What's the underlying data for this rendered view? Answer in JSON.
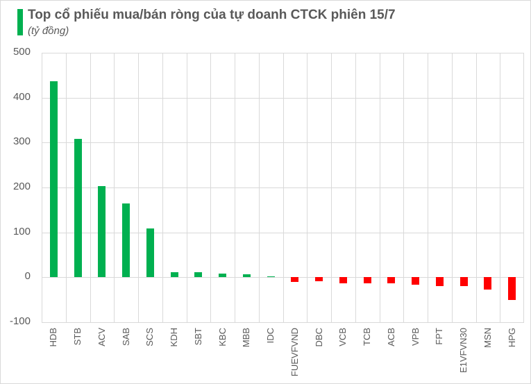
{
  "header": {
    "title": "Top cổ phiếu mua/bán ròng của tự doanh CTCK phiên 15/7",
    "subtitle": "(tỷ đồng)",
    "accent_color": "#00b050"
  },
  "colors": {
    "positive": "#00b050",
    "negative": "#ff0000",
    "grid": "#d9d9d9",
    "text": "#595959"
  },
  "chart_data": {
    "type": "bar",
    "title": "Top cổ phiếu mua/bán ròng của tự doanh CTCK phiên 15/7",
    "subtitle": "(tỷ đồng)",
    "xlabel": "",
    "ylabel": "",
    "ylim": [
      -100,
      500
    ],
    "yticks": [
      500,
      400,
      300,
      200,
      100,
      0,
      -100
    ],
    "grid": true,
    "legend": "none",
    "categories": [
      "HDB",
      "STB",
      "ACV",
      "SAB",
      "SCS",
      "KDH",
      "SBT",
      "KBC",
      "MBB",
      "IDC",
      "FUEVFVND",
      "DBC",
      "VCB",
      "TCB",
      "ACB",
      "VPB",
      "FPT",
      "E1VFVN30",
      "MSN",
      "HPG"
    ],
    "values": [
      436,
      308,
      203,
      164,
      108,
      11,
      11,
      9,
      7,
      2,
      -10,
      -9,
      -13,
      -14,
      -14,
      -16,
      -19,
      -20,
      -28,
      -51
    ]
  },
  "yaxis": {
    "ticks": [
      "500",
      "400",
      "300",
      "200",
      "100",
      "0",
      "-100"
    ]
  }
}
